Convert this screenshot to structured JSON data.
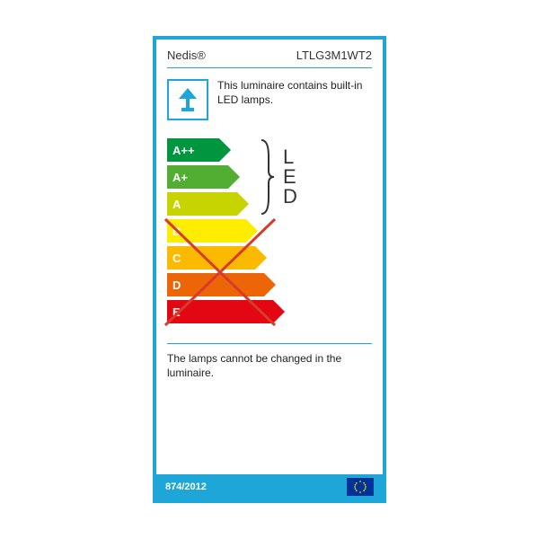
{
  "colors": {
    "border": "#1fa6d9",
    "text": "#222222"
  },
  "header": {
    "brand": "Nedis®",
    "model": "LTLG3M1WT2"
  },
  "luminaire": {
    "description": "This luminaire contains built-in LED lamps."
  },
  "chart": {
    "indicator_label": "LED",
    "selected_range_start": 0,
    "selected_range_end": 2,
    "crossed_range_start": 3,
    "crossed_range_end": 6,
    "cross_color": "#d93a2b",
    "ratings": [
      {
        "label": "A++",
        "color": "#009640",
        "width": 52
      },
      {
        "label": "A+",
        "color": "#52ae32",
        "width": 62
      },
      {
        "label": "A",
        "color": "#c8d400",
        "width": 72
      },
      {
        "label": "B",
        "color": "#ffed00",
        "width": 82
      },
      {
        "label": "C",
        "color": "#fbba00",
        "width": 92
      },
      {
        "label": "D",
        "color": "#ec6608",
        "width": 102
      },
      {
        "label": "E",
        "color": "#e30613",
        "width": 112
      }
    ]
  },
  "bottom_text": "The lamps cannot be changed in the luminaire.",
  "footer": {
    "regulation": "874/2012"
  }
}
